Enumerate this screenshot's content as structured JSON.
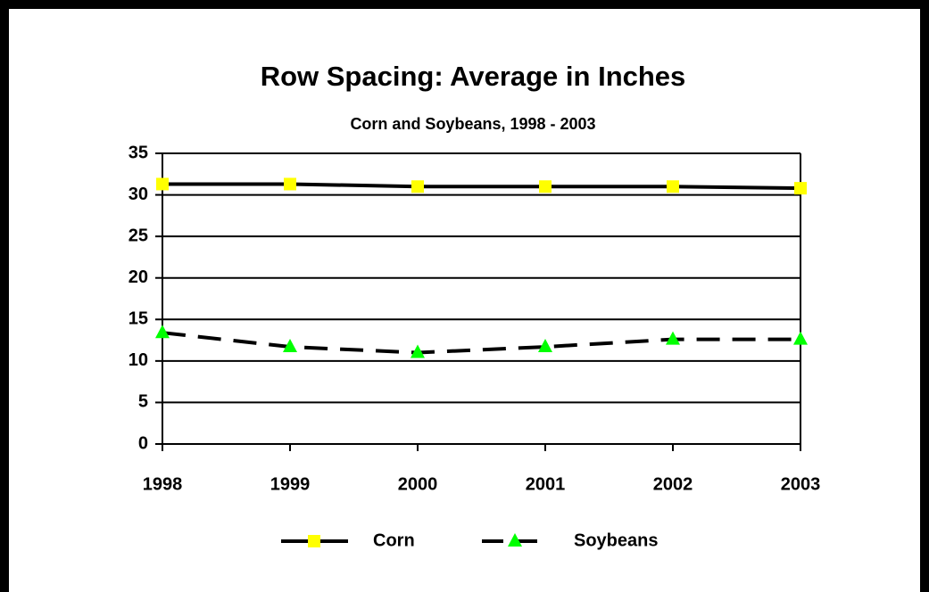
{
  "chart_data": {
    "type": "line",
    "title": "Row Spacing: Average in Inches",
    "subtitle": "Corn and Soybeans, 1998 - 2003",
    "categories": [
      "1998",
      "1999",
      "2000",
      "2001",
      "2002",
      "2003"
    ],
    "series": [
      {
        "name": "Corn",
        "color": "#ffff00",
        "line_color": "#000000",
        "dashed": false,
        "marker": "square",
        "values": [
          31.3,
          31.3,
          31.0,
          31.0,
          31.0,
          30.8
        ]
      },
      {
        "name": "Soybeans",
        "color": "#00ff00",
        "line_color": "#000000",
        "dashed": true,
        "marker": "triangle",
        "values": [
          13.4,
          11.7,
          11.0,
          11.7,
          12.6,
          12.6
        ]
      }
    ],
    "ylim": [
      0,
      35
    ],
    "yticks": [
      0,
      5,
      10,
      15,
      20,
      25,
      30,
      35
    ],
    "grid": true,
    "legend": "bottom"
  }
}
